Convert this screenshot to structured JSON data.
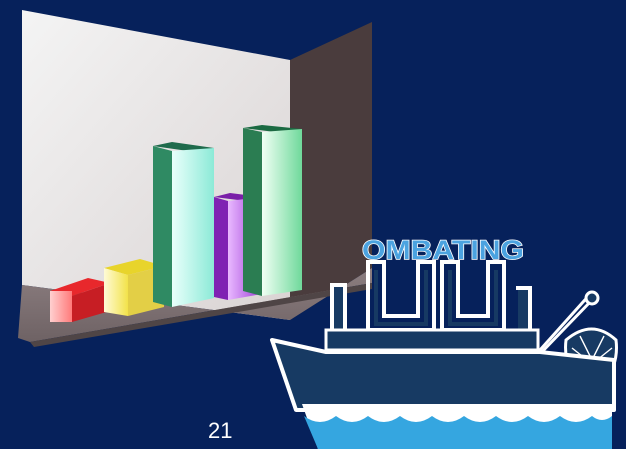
{
  "slide": {
    "background_color": "#06215b",
    "page_number": "21"
  },
  "clipart": {
    "icon": "3d-bar-chart-icon",
    "bar_colors": [
      "#e8282c",
      "#f2e24a",
      "#9df2df",
      "#9c3bd6",
      "#6fd99b"
    ]
  },
  "logo": {
    "icon": "fishing-boat-logo-icon",
    "word": "OMBATING",
    "colors": {
      "boat": "#173a63",
      "outline": "#ffffff",
      "word": "#4ba3e0",
      "water": "#35a6e0",
      "fish": "#e0242e"
    }
  }
}
